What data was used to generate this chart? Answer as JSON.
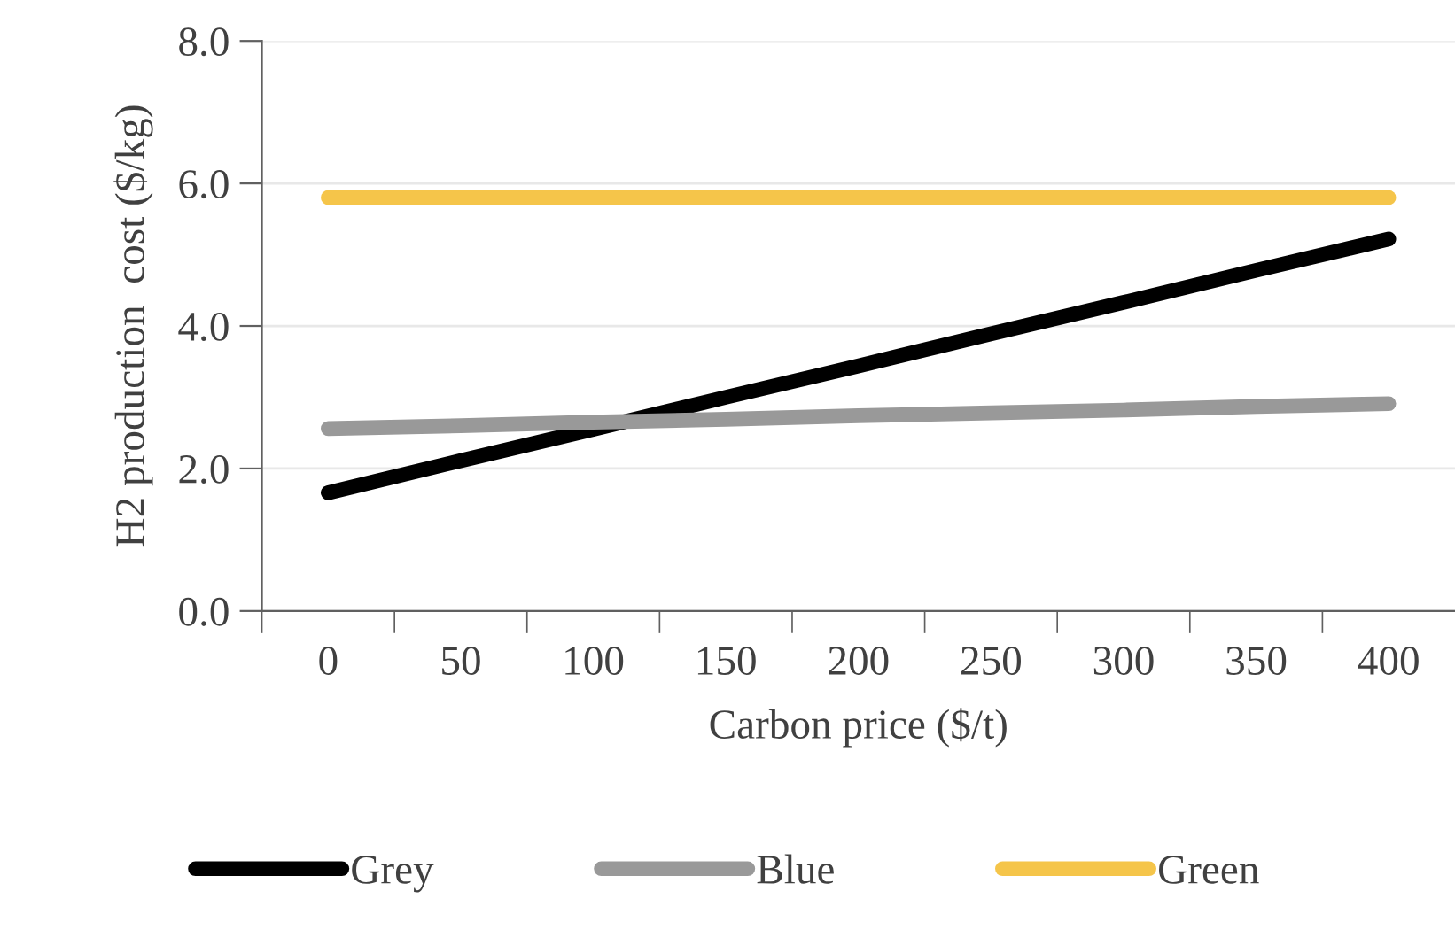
{
  "chart_data": {
    "type": "line",
    "xlabel": "Carbon price ($/t)",
    "ylabel": "H2 production  cost ($/kg)",
    "categories": [
      "0",
      "50",
      "100",
      "150",
      "200",
      "250",
      "300",
      "350",
      "400"
    ],
    "series": [
      {
        "name": "Grey",
        "color": "#000000",
        "values": [
          1.66,
          2.11,
          2.55,
          3.0,
          3.44,
          3.89,
          4.33,
          4.78,
          5.22
        ]
      },
      {
        "name": "Blue",
        "color": "#999999",
        "values": [
          2.56,
          2.6,
          2.65,
          2.69,
          2.74,
          2.78,
          2.82,
          2.87,
          2.91
        ]
      },
      {
        "name": "Green",
        "color": "#f5c54a",
        "values": [
          5.8,
          5.8,
          5.8,
          5.8,
          5.8,
          5.8,
          5.8,
          5.8,
          5.8
        ]
      }
    ],
    "ylim": [
      0,
      8
    ],
    "yticks": [
      {
        "value": 0,
        "label": "0.0"
      },
      {
        "value": 2,
        "label": "2.0"
      },
      {
        "value": 4,
        "label": "4.0"
      },
      {
        "value": 6,
        "label": "6.0"
      },
      {
        "value": 8,
        "label": "8.0"
      }
    ],
    "grid": "y",
    "legend": "bottom",
    "marker": "none",
    "line_style": "solid"
  }
}
